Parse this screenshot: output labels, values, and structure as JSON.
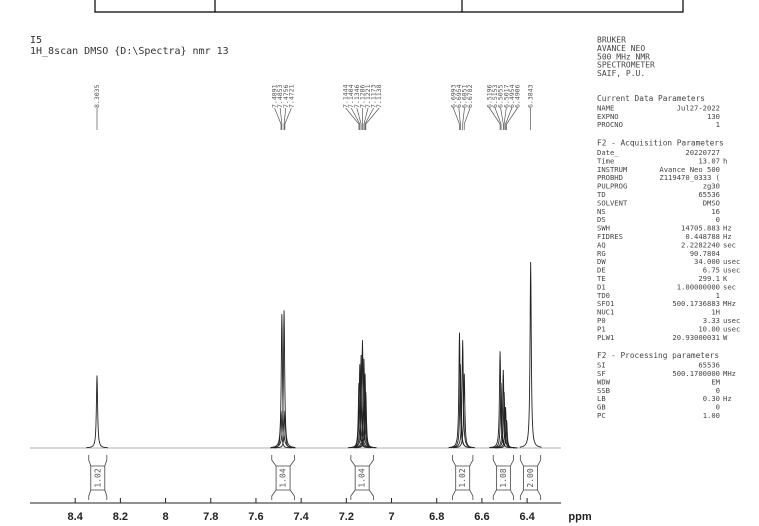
{
  "header": {
    "title": "I5",
    "subtitle": "1H_8scan DMSO {D:\\Spectra} nmr 13"
  },
  "chart_data": {
    "type": "nmr",
    "x": [
      8.3035,
      7.4891,
      7.4853,
      7.4756,
      7.4721,
      7.1444,
      7.1404,
      7.1346,
      7.1286,
      7.1221,
      7.1173,
      7.1138,
      6.6993,
      6.6954,
      6.6851,
      6.6782,
      6.5196,
      6.5153,
      6.5055,
      6.5017,
      6.4954,
      6.4906,
      6.3843
    ],
    "values": [
      39,
      20,
      72,
      74,
      20,
      35,
      45,
      50,
      58,
      48,
      40,
      30,
      62,
      45,
      58,
      40,
      52,
      35,
      42,
      30,
      22,
      15,
      100
    ],
    "color": "#222222",
    "xlim": [
      8.6,
      6.25
    ],
    "ylim": [
      0,
      100
    ],
    "xticks": [
      8.4,
      8.2,
      8,
      7.8,
      7.6,
      7.4,
      7.2,
      7,
      6.8,
      6.6,
      6.4
    ],
    "xlabel": "ppm",
    "integrals": [
      1.02,
      1.04,
      1.04,
      1.02,
      1.08,
      2
    ],
    "integral_labels": [
      "1.02",
      "1.04",
      "1.04",
      "1.02",
      "1.08",
      "2.00"
    ],
    "integral_ranges": [
      [
        8.34,
        8.26
      ],
      [
        7.53,
        7.43
      ],
      [
        7.18,
        7.08
      ],
      [
        6.73,
        6.64
      ],
      [
        6.55,
        6.46
      ],
      [
        6.43,
        6.34
      ]
    ]
  },
  "panel": {
    "lines": [
      "BRUKER",
      "AVANCE NEO",
      "500 MHz NMR",
      "SPECTROMETER",
      "SAIF, P.U."
    ],
    "sections": [
      {
        "title": "Current Data Parameters",
        "rows": [
          [
            "NAME",
            "Jul27-2022"
          ],
          [
            "EXPNO",
            "130"
          ],
          [
            "PROCNO",
            "1"
          ]
        ]
      },
      {
        "title": "F2 - Acquisition Parameters",
        "rows": [
          [
            "Date_",
            "20220727"
          ],
          [
            "Time",
            "13.07",
            "h"
          ],
          [
            "INSTRUM",
            "Avance Neo 500"
          ],
          [
            "PROBHD",
            "Z119470_0333 ("
          ],
          [
            "PULPROG",
            "zg30"
          ],
          [
            "TD",
            "65536"
          ],
          [
            "SOLVENT",
            "DMSO"
          ],
          [
            "NS",
            "16"
          ],
          [
            "DS",
            "0"
          ],
          [
            "SWH",
            "14705.883",
            "Hz"
          ],
          [
            "FIDRES",
            "0.448788",
            "Hz"
          ],
          [
            "AQ",
            "2.2282240",
            "sec"
          ],
          [
            "RG",
            "90.7804"
          ],
          [
            "DW",
            "34.000",
            "usec"
          ],
          [
            "DE",
            "6.75",
            "usec"
          ],
          [
            "TE",
            "299.1",
            "K"
          ],
          [
            "D1",
            "1.00000000",
            "sec"
          ],
          [
            "TD0",
            "1"
          ],
          [
            "SFO1",
            "500.1736883",
            "MHz"
          ],
          [
            "NUC1",
            "1H"
          ],
          [
            "P0",
            "3.33",
            "usec"
          ],
          [
            "P1",
            "10.00",
            "usec"
          ],
          [
            "PLW1",
            "20.93000031",
            "W"
          ]
        ]
      },
      {
        "title": "F2 - Processing parameters",
        "rows": [
          [
            "SI",
            "65536"
          ],
          [
            "SF",
            "500.1700000",
            "MHz"
          ],
          [
            "WDW",
            "EM"
          ],
          [
            "SSB",
            "0"
          ],
          [
            "LB",
            "0.30",
            "Hz"
          ],
          [
            "GB",
            "0"
          ],
          [
            "PC",
            "1.00"
          ]
        ]
      }
    ]
  }
}
